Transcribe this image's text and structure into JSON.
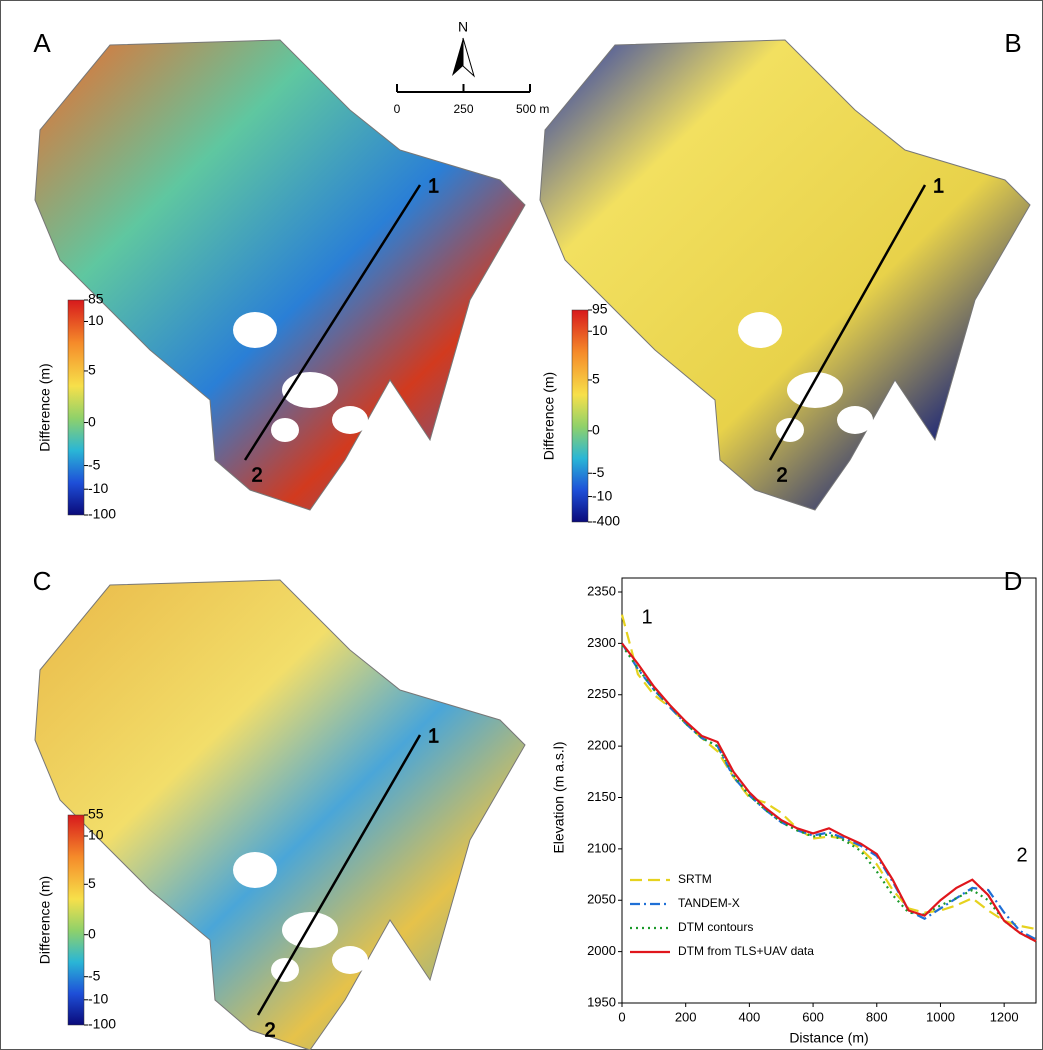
{
  "panels": [
    {
      "label": "A",
      "colorbar": {
        "title": "Difference (m)",
        "ticks": [
          85,
          10,
          5,
          0,
          -5,
          -10,
          -100
        ]
      },
      "profile": [
        "1",
        "2"
      ]
    },
    {
      "label": "B",
      "colorbar": {
        "title": "Difference (m)",
        "ticks": [
          95,
          10,
          5,
          0,
          -5,
          -10,
          -400
        ]
      },
      "profile": [
        "1",
        "2"
      ]
    },
    {
      "label": "C",
      "colorbar": {
        "title": "Difference (m)",
        "ticks": [
          55,
          10,
          5,
          0,
          -5,
          -10,
          -100
        ]
      },
      "profile": [
        "1",
        "2"
      ]
    }
  ],
  "scale_bar": {
    "north": "N",
    "ticks": [
      0,
      250,
      {
        "value": 500,
        "label": "500 m"
      }
    ]
  },
  "chart_data": {
    "type": "line",
    "label": "D",
    "xlabel": "Distance (m)",
    "ylabel": "Elevation (m a.s.l)",
    "annotations": [
      "1",
      "2"
    ],
    "x": [
      0,
      50,
      100,
      150,
      200,
      250,
      300,
      350,
      400,
      450,
      500,
      550,
      600,
      650,
      700,
      750,
      800,
      850,
      900,
      950,
      1000,
      1050,
      1100,
      1150,
      1200,
      1250,
      1300
    ],
    "series": [
      {
        "name": "SRTM",
        "color": "#e6d21e",
        "line_style": "dashed",
        "values": [
          2328,
          2270,
          2250,
          2238,
          2222,
          2208,
          2195,
          2170,
          2150,
          2145,
          2135,
          2120,
          2110,
          2112,
          2110,
          2100,
          2085,
          2060,
          2042,
          2038,
          2040,
          2045,
          2052,
          2040,
          2030,
          2025,
          2022
        ]
      },
      {
        "name": "TANDEM-X",
        "color": "#1f6fd6",
        "line_style": "dashdot",
        "values": [
          2300,
          2275,
          2255,
          2238,
          2222,
          2208,
          2200,
          2170,
          2152,
          2138,
          2126,
          2118,
          2113,
          2116,
          2110,
          2103,
          2093,
          2068,
          2040,
          2032,
          2042,
          2052,
          2062,
          2060,
          2038,
          2020,
          2012
        ]
      },
      {
        "name": "DTM contours",
        "color": "#1a9a2a",
        "line_style": "dotted",
        "values": [
          2298,
          2276,
          2255,
          2240,
          2222,
          2208,
          2200,
          2172,
          2152,
          2138,
          2126,
          2118,
          2112,
          2114,
          2108,
          2098,
          2078,
          2055,
          2038,
          2036,
          2045,
          2052,
          2060,
          2050,
          2030,
          2018,
          2010
        ]
      },
      {
        "name": "DTM from TLS+UAV data",
        "color": "#e0161c",
        "line_style": "solid",
        "values": [
          2300,
          2280,
          2258,
          2240,
          2224,
          2210,
          2204,
          2175,
          2155,
          2140,
          2128,
          2120,
          2115,
          2120,
          2112,
          2105,
          2095,
          2070,
          2040,
          2035,
          2050,
          2062,
          2070,
          2055,
          2030,
          2018,
          2010
        ]
      }
    ],
    "xlim": [
      0,
      1300
    ],
    "xticks": [
      0,
      200,
      400,
      600,
      800,
      1000,
      1200
    ],
    "ylim": [
      1950,
      2350
    ],
    "yticks": [
      1950,
      2000,
      2050,
      2100,
      2150,
      2200,
      2250,
      2300,
      2350
    ],
    "legend": "lower left"
  }
}
